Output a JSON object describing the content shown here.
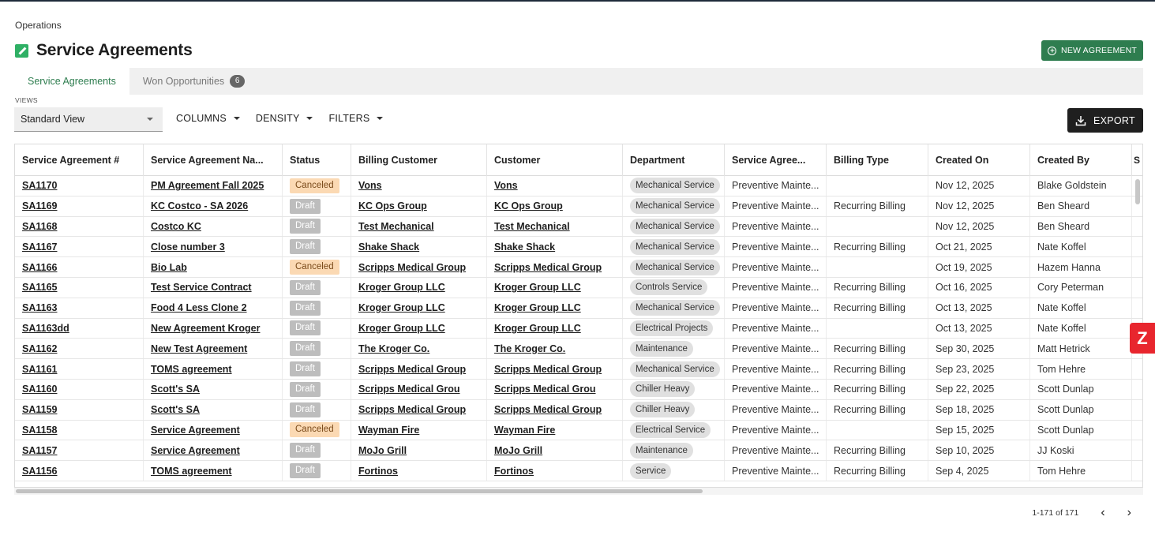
{
  "breadcrumb": "Operations",
  "page_title": "Service Agreements",
  "new_agreement_label": "NEW AGREEMENT",
  "tabs": [
    {
      "label": "Service Agreements",
      "active": true
    },
    {
      "label": "Won Opportunities",
      "badge": "6",
      "active": false
    }
  ],
  "views": {
    "label": "VIEWS",
    "selected": "Standard View"
  },
  "toolbar": {
    "columns": "COLUMNS",
    "density": "DENSITY",
    "filters": "FILTERS",
    "export": "EXPORT"
  },
  "table": {
    "columns": [
      "Service Agreement #",
      "Service Agreement Na...",
      "Status",
      "Billing Customer",
      "Customer",
      "Department",
      "Service Agree...",
      "Billing Type",
      "Created On",
      "Created By"
    ],
    "rows": [
      {
        "id": "SA1170",
        "name": "PM Agreement Fall 2025",
        "status": "Canceled",
        "billing_customer": "Vons",
        "customer": "Vons",
        "department": "Mechanical Service",
        "type": "Preventive Mainte...",
        "billing_type": "",
        "created_on": "Nov 12, 2025",
        "created_by": "Blake Goldstein"
      },
      {
        "id": "SA1169",
        "name": "KC Costco - SA 2026",
        "status": "Draft",
        "billing_customer": "KC Ops Group",
        "customer": "KC Ops Group",
        "department": "Mechanical Service",
        "type": "Preventive Mainte...",
        "billing_type": "Recurring Billing",
        "created_on": "Nov 12, 2025",
        "created_by": "Ben Sheard"
      },
      {
        "id": "SA1168",
        "name": "Costco KC",
        "status": "Draft",
        "billing_customer": "Test Mechanical",
        "customer": "Test Mechanical",
        "department": "Mechanical Service",
        "type": "Preventive Mainte...",
        "billing_type": "",
        "created_on": "Nov 12, 2025",
        "created_by": "Ben Sheard"
      },
      {
        "id": "SA1167",
        "name": "Close number 3",
        "status": "Draft",
        "billing_customer": "Shake Shack",
        "customer": "Shake Shack",
        "department": "Mechanical Service",
        "type": "Preventive Mainte...",
        "billing_type": "Recurring Billing",
        "created_on": "Oct 21, 2025",
        "created_by": "Nate Koffel"
      },
      {
        "id": "SA1166",
        "name": "Bio Lab",
        "status": "Canceled",
        "billing_customer": "Scripps Medical Group",
        "customer": "Scripps Medical Group",
        "department": "Mechanical Service",
        "type": "Preventive Mainte...",
        "billing_type": "",
        "created_on": "Oct 19, 2025",
        "created_by": "Hazem Hanna"
      },
      {
        "id": "SA1165",
        "name": "Test Service Contract",
        "status": "Draft",
        "billing_customer": "Kroger Group LLC",
        "customer": "Kroger Group LLC",
        "department": "Controls Service",
        "type": "Preventive Mainte...",
        "billing_type": "Recurring Billing",
        "created_on": "Oct 16, 2025",
        "created_by": "Cory Peterman"
      },
      {
        "id": "SA1163",
        "name": "Food 4 Less Clone 2",
        "status": "Draft",
        "billing_customer": "Kroger Group LLC",
        "customer": "Kroger Group LLC",
        "department": "Mechanical Service",
        "type": "Preventive Mainte...",
        "billing_type": "Recurring Billing",
        "created_on": "Oct 13, 2025",
        "created_by": "Nate Koffel"
      },
      {
        "id": "SA1163dd",
        "name": "New Agreement Kroger",
        "status": "Draft",
        "billing_customer": "Kroger Group LLC",
        "customer": "Kroger Group LLC",
        "department": "Electrical Projects",
        "type": "Preventive Mainte...",
        "billing_type": "",
        "created_on": "Oct 13, 2025",
        "created_by": "Nate Koffel"
      },
      {
        "id": "SA1162",
        "name": "New Test Agreement",
        "status": "Draft",
        "billing_customer": "The Kroger Co.",
        "customer": "The Kroger Co.",
        "department": "Maintenance",
        "type": "Preventive Mainte...",
        "billing_type": "Recurring Billing",
        "created_on": "Sep 30, 2025",
        "created_by": "Matt Hetrick"
      },
      {
        "id": "SA1161",
        "name": "TOMS agreement",
        "status": "Draft",
        "billing_customer": "Scripps Medical Group",
        "customer": "Scripps Medical Group",
        "department": "Mechanical Service",
        "type": "Preventive Mainte...",
        "billing_type": "Recurring Billing",
        "created_on": "Sep 23, 2025",
        "created_by": "Tom Hehre"
      },
      {
        "id": "SA1160",
        "name": "Scott's SA",
        "status": "Draft",
        "billing_customer": "Scripps Medical Grou",
        "customer": "Scripps Medical Grou",
        "department": "Chiller Heavy",
        "type": "Preventive Mainte...",
        "billing_type": "Recurring Billing",
        "created_on": "Sep 22, 2025",
        "created_by": "Scott Dunlap"
      },
      {
        "id": "SA1159",
        "name": "Scott's SA",
        "status": "Draft",
        "billing_customer": "Scripps Medical Group",
        "customer": "Scripps Medical Group",
        "department": "Chiller Heavy",
        "type": "Preventive Mainte...",
        "billing_type": "Recurring Billing",
        "created_on": "Sep 18, 2025",
        "created_by": "Scott Dunlap"
      },
      {
        "id": "SA1158",
        "name": "Service Agreement",
        "status": "Canceled",
        "billing_customer": "Wayman Fire",
        "customer": "Wayman Fire",
        "department": "Electrical Service",
        "type": "Preventive Mainte...",
        "billing_type": "",
        "created_on": "Sep 15, 2025",
        "created_by": "Scott Dunlap"
      },
      {
        "id": "SA1157",
        "name": "Service Agreement",
        "status": "Draft",
        "billing_customer": "MoJo Grill",
        "customer": "MoJo Grill",
        "department": "Maintenance",
        "type": "Preventive Mainte...",
        "billing_type": "Recurring Billing",
        "created_on": "Sep 10, 2025",
        "created_by": "JJ Koski"
      },
      {
        "id": "SA1156",
        "name": "TOMS agreement",
        "status": "Draft",
        "billing_customer": "Fortinos",
        "customer": "Fortinos",
        "department": "Service",
        "type": "Preventive Mainte...",
        "billing_type": "Recurring Billing",
        "created_on": "Sep 4, 2025",
        "created_by": "Tom Hehre"
      }
    ]
  },
  "pagination": {
    "range": "1-171 of 171"
  },
  "colors": {
    "accent": "#2e7d4f",
    "canceled_bg": "#fbd9b3",
    "draft_bg": "#bdbdbd",
    "brand_badge": "#e8262e"
  }
}
